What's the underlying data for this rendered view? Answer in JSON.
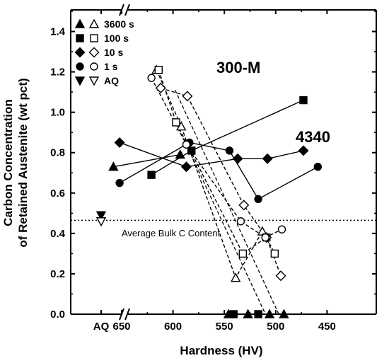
{
  "chart_data": {
    "type": "scatter",
    "xlabel": "Hardness (HV)",
    "ylabel_lines": [
      "Carbon Concentration",
      "of Retained Austenite (wt pct)"
    ],
    "x_axis": {
      "reversed": true,
      "break_after_AQ": true,
      "xlim": [
        450,
        675
      ],
      "ticks": [
        650,
        600,
        550,
        500,
        450
      ],
      "tick_labels": [
        "650",
        "600",
        "550",
        "500",
        "450"
      ],
      "aq_label": "AQ"
    },
    "ylim": [
      0,
      1.5
    ],
    "yticks": [
      0.0,
      0.2,
      0.4,
      0.6,
      0.8,
      1.0,
      1.2,
      1.4
    ],
    "ytick_labels": [
      "0.0",
      "0.2",
      "0.4",
      "0.6",
      "0.8",
      "1.0",
      "1.2",
      "1.4"
    ],
    "grid": false,
    "legend_position": "top-left",
    "legend": [
      {
        "label": "3600 s",
        "marker": "triangle-up"
      },
      {
        "label": "100 s",
        "marker": "square"
      },
      {
        "label": "10 s",
        "marker": "diamond"
      },
      {
        "label": "1 s",
        "marker": "circle"
      },
      {
        "label": "AQ",
        "marker": "triangle-down"
      }
    ],
    "annotations": {
      "steel_300M": "300-M",
      "steel_4340": "4340",
      "bulk_line_label": "Average Bulk C Content"
    },
    "bulk_c_content": 0.465,
    "aq_points": [
      {
        "material": "4340",
        "y": 0.49,
        "filled": true
      },
      {
        "material": "300-M",
        "y": 0.46,
        "filled": false
      }
    ],
    "series": [
      {
        "name": "3600 s",
        "material": "4340",
        "marker": "triangle-up",
        "filled": true,
        "line": "solid",
        "x": [
          658,
          593
        ],
        "y": [
          0.73,
          0.79
        ]
      },
      {
        "name": "100 s",
        "material": "4340",
        "marker": "square",
        "filled": true,
        "line": "solid",
        "x": [
          621,
          582,
          473
        ],
        "y": [
          0.69,
          0.81,
          1.06
        ]
      },
      {
        "name": "10 s",
        "material": "4340",
        "marker": "diamond",
        "filled": true,
        "line": "solid",
        "x": [
          652,
          587,
          537,
          508,
          473
        ],
        "y": [
          0.85,
          0.73,
          0.77,
          0.77,
          0.81
        ]
      },
      {
        "name": "1 s",
        "material": "4340",
        "marker": "circle",
        "filled": true,
        "line": "solid",
        "x": [
          652,
          584,
          545,
          517,
          459
        ],
        "y": [
          0.65,
          0.85,
          0.81,
          0.57,
          0.73
        ]
      },
      {
        "name": "3600 s",
        "material": "300-M",
        "marker": "triangle-up",
        "filled": false,
        "line": "dashed",
        "x": [
          616,
          592,
          539,
          513
        ],
        "y": [
          1.21,
          0.93,
          0.18,
          0.41
        ]
      },
      {
        "name": "100 s",
        "material": "300-M",
        "marker": "square",
        "filled": false,
        "line": "dashed",
        "x": [
          614,
          597,
          532,
          509,
          501
        ],
        "y": [
          1.21,
          0.95,
          0.3,
          0.38,
          0.3
        ]
      },
      {
        "name": "10 s",
        "material": "300-M",
        "marker": "diamond",
        "filled": false,
        "line": "dashed",
        "x": [
          612,
          586,
          531,
          509,
          495
        ],
        "y": [
          1.12,
          1.08,
          0.54,
          0.38,
          0.19
        ]
      },
      {
        "name": "1 s",
        "material": "300-M",
        "marker": "circle",
        "filled": false,
        "line": "dashed",
        "x": [
          621,
          587,
          534,
          510,
          494
        ],
        "y": [
          1.17,
          0.84,
          0.46,
          0.38,
          0.42
        ]
      },
      {
        "name": "3600 s",
        "material": "zero-axis",
        "marker": "triangle-up",
        "filled": true,
        "line": "none",
        "x": [
          546,
          527,
          506,
          492
        ],
        "y": [
          0.0,
          0.0,
          0.0,
          0.0
        ]
      },
      {
        "name": "100 s",
        "material": "zero-axis",
        "marker": "square",
        "filled": true,
        "line": "none",
        "x": [
          541,
          517
        ],
        "y": [
          0.0,
          0.0
        ]
      }
    ],
    "dashed_crossings": [
      {
        "x": [
          587,
          510
        ],
        "y": [
          0.84,
          0.0
        ]
      },
      {
        "x": [
          598,
          497
        ],
        "y": [
          1.11,
          0.0
        ]
      }
    ]
  }
}
